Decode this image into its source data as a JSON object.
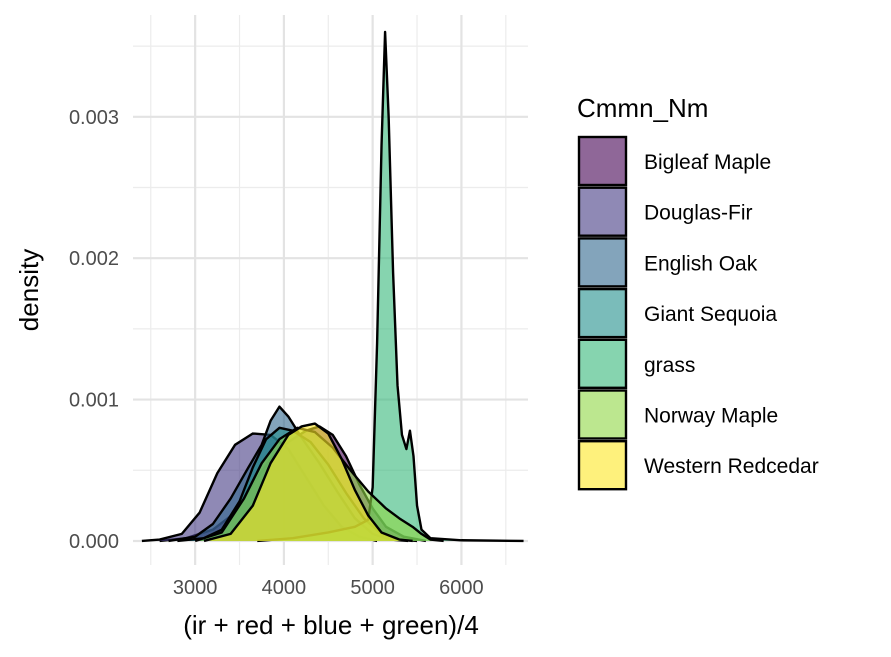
{
  "chart_data": {
    "type": "area",
    "subtype": "density",
    "xlabel": "(ir + red + blue + green)/4",
    "ylabel": "density",
    "xlim": [
      2300,
      6750
    ],
    "ylim": [
      -0.00017,
      0.00372
    ],
    "x_ticks": [
      3000,
      4000,
      5000,
      6000
    ],
    "x_tick_labels": [
      "3000",
      "4000",
      "5000",
      "6000"
    ],
    "y_ticks": [
      0.0,
      0.001,
      0.002,
      0.003
    ],
    "y_tick_labels": [
      "0.000",
      "0.001",
      "0.002",
      "0.003"
    ],
    "grid": true,
    "legend_title": "Cmmn_Nm",
    "legend_position": "right",
    "series": [
      {
        "name": "Bigleaf Maple",
        "color": "#440154",
        "points": [
          [
            2600,
            0
          ],
          [
            2900,
            2e-05
          ],
          [
            3200,
            8e-05
          ],
          [
            3450,
            0.0002
          ],
          [
            3650,
            0.0004
          ],
          [
            3850,
            0.00058
          ],
          [
            4050,
            0.0007
          ],
          [
            4250,
            0.00078
          ],
          [
            4400,
            0.00081
          ],
          [
            4550,
            0.00075
          ],
          [
            4700,
            0.0006
          ],
          [
            4850,
            0.0004
          ],
          [
            5000,
            0.00023
          ],
          [
            5150,
            0.0001
          ],
          [
            5350,
            3e-05
          ],
          [
            5600,
            0
          ]
        ]
      },
      {
        "name": "Douglas-Fir",
        "color": "#443A83",
        "points": [
          [
            2400,
            0
          ],
          [
            2600,
            1e-05
          ],
          [
            2850,
            5e-05
          ],
          [
            3050,
            0.0002
          ],
          [
            3250,
            0.00048
          ],
          [
            3450,
            0.00068
          ],
          [
            3650,
            0.00076
          ],
          [
            3850,
            0.00075
          ],
          [
            4050,
            0.00065
          ],
          [
            4250,
            0.00045
          ],
          [
            4450,
            0.00025
          ],
          [
            4650,
            0.0001
          ],
          [
            4850,
            3e-05
          ],
          [
            5050,
            0
          ]
        ]
      },
      {
        "name": "English Oak",
        "color": "#31688E",
        "points": [
          [
            2700,
            0
          ],
          [
            3000,
            3e-05
          ],
          [
            3200,
            0.00012
          ],
          [
            3400,
            0.0003
          ],
          [
            3600,
            0.00052
          ],
          [
            3750,
            0.00068
          ],
          [
            3850,
            0.00085
          ],
          [
            3950,
            0.00095
          ],
          [
            4050,
            0.00088
          ],
          [
            4200,
            0.00073
          ],
          [
            4400,
            0.00055
          ],
          [
            4600,
            0.00035
          ],
          [
            4800,
            0.00016
          ],
          [
            5000,
            5e-05
          ],
          [
            5200,
            1e-05
          ],
          [
            5400,
            0
          ]
        ]
      },
      {
        "name": "Giant Sequoia",
        "color": "#21908C",
        "points": [
          [
            2800,
            0
          ],
          [
            3100,
            2e-05
          ],
          [
            3300,
            8e-05
          ],
          [
            3500,
            0.00028
          ],
          [
            3650,
            0.00052
          ],
          [
            3800,
            0.00072
          ],
          [
            3950,
            0.0008
          ],
          [
            4100,
            0.00078
          ],
          [
            4300,
            0.0007
          ],
          [
            4500,
            0.00054
          ],
          [
            4700,
            0.00034
          ],
          [
            4900,
            0.00016
          ],
          [
            5100,
            5e-05
          ],
          [
            5300,
            1e-05
          ],
          [
            5500,
            0
          ]
        ]
      },
      {
        "name": "grass",
        "color": "#35B779",
        "points": [
          [
            3700,
            0
          ],
          [
            4100,
            2e-05
          ],
          [
            4500,
            6e-05
          ],
          [
            4800,
            0.0001
          ],
          [
            4950,
            0.00015
          ],
          [
            5000,
            0.00038
          ],
          [
            5050,
            0.0014
          ],
          [
            5100,
            0.0028
          ],
          [
            5140,
            0.0036
          ],
          [
            5180,
            0.003
          ],
          [
            5230,
            0.0019
          ],
          [
            5280,
            0.0011
          ],
          [
            5330,
            0.00075
          ],
          [
            5380,
            0.00065
          ],
          [
            5420,
            0.00078
          ],
          [
            5460,
            0.0006
          ],
          [
            5500,
            0.00025
          ],
          [
            5550,
            8e-05
          ],
          [
            5650,
            2e-05
          ],
          [
            6000,
            5e-06
          ],
          [
            6700,
            0
          ]
        ]
      },
      {
        "name": "Norway Maple",
        "color": "#8FD744",
        "points": [
          [
            3000,
            0
          ],
          [
            3300,
            6e-05
          ],
          [
            3550,
            0.0003
          ],
          [
            3750,
            0.00055
          ],
          [
            3950,
            0.00072
          ],
          [
            4150,
            0.0008
          ],
          [
            4350,
            0.00077
          ],
          [
            4550,
            0.00066
          ],
          [
            4750,
            0.0005
          ],
          [
            4950,
            0.00035
          ],
          [
            5150,
            0.00023
          ],
          [
            5300,
            0.00016
          ],
          [
            5450,
            0.0001
          ],
          [
            5550,
            5e-05
          ],
          [
            5650,
            1e-05
          ],
          [
            5800,
            0
          ]
        ]
      },
      {
        "name": "Western Redcedar",
        "color": "#FDE725",
        "points": [
          [
            3100,
            0
          ],
          [
            3400,
            5e-05
          ],
          [
            3650,
            0.00025
          ],
          [
            3850,
            0.00055
          ],
          [
            4050,
            0.00075
          ],
          [
            4200,
            0.00081
          ],
          [
            4350,
            0.00083
          ],
          [
            4500,
            0.00076
          ],
          [
            4650,
            0.00058
          ],
          [
            4800,
            0.00036
          ],
          [
            4950,
            0.00018
          ],
          [
            5100,
            6e-05
          ],
          [
            5300,
            1e-05
          ],
          [
            5450,
            0
          ]
        ]
      }
    ]
  }
}
